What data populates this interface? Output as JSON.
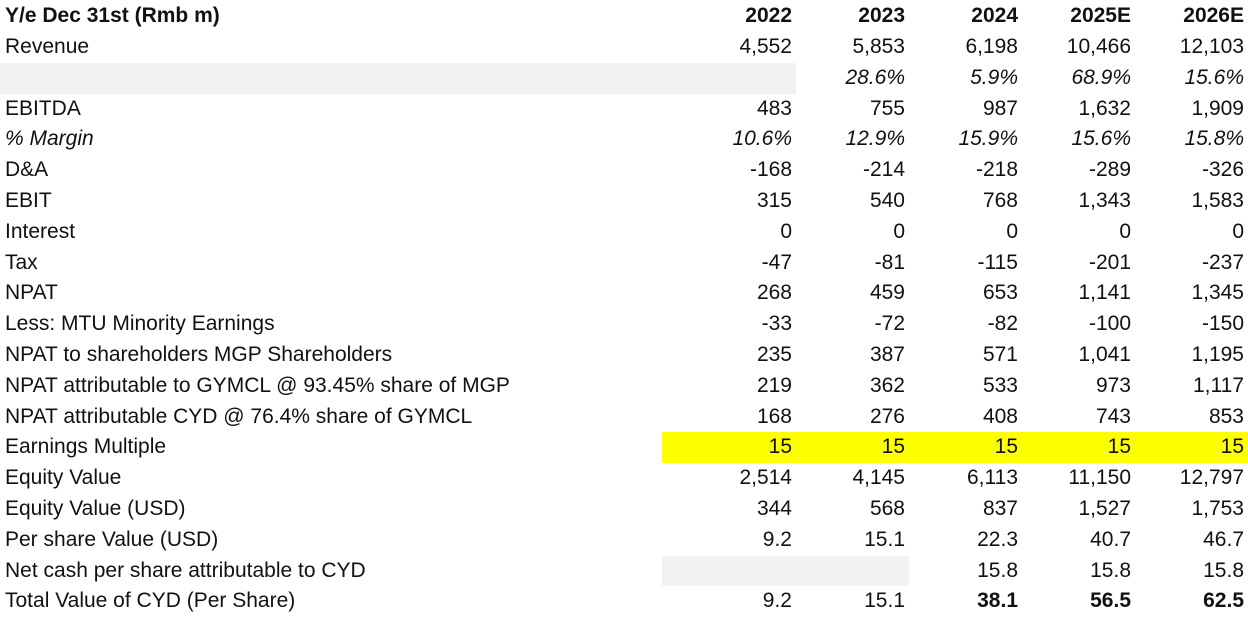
{
  "header": {
    "label": "Y/e Dec 31st (Rmb m)",
    "years": [
      "2022",
      "2023",
      "2024",
      "2025E",
      "2026E"
    ]
  },
  "rows": {
    "revenue": {
      "label": "Revenue",
      "v": [
        "4,552",
        "5,853",
        "6,198",
        "10,466",
        "12,103"
      ]
    },
    "revenue_growth": {
      "label": "",
      "v": [
        "",
        "28.6%",
        "5.9%",
        "68.9%",
        "15.6%"
      ]
    },
    "ebitda": {
      "label": "EBITDA",
      "v": [
        "483",
        "755",
        "987",
        "1,632",
        "1,909"
      ]
    },
    "margin": {
      "label": "% Margin",
      "v": [
        "10.6%",
        "12.9%",
        "15.9%",
        "15.6%",
        "15.8%"
      ]
    },
    "da": {
      "label": "D&A",
      "v": [
        "-168",
        "-214",
        "-218",
        "-289",
        "-326"
      ]
    },
    "ebit": {
      "label": "EBIT",
      "v": [
        "315",
        "540",
        "768",
        "1,343",
        "1,583"
      ]
    },
    "interest": {
      "label": "Interest",
      "v": [
        "0",
        "0",
        "0",
        "0",
        "0"
      ]
    },
    "tax": {
      "label": "Tax",
      "v": [
        "-47",
        "-81",
        "-115",
        "-201",
        "-237"
      ]
    },
    "npat": {
      "label": "NPAT",
      "v": [
        "268",
        "459",
        "653",
        "1,141",
        "1,345"
      ]
    },
    "minority": {
      "label": "Less: MTU Minority Earnings",
      "v": [
        "-33",
        "-72",
        "-82",
        "-100",
        "-150"
      ]
    },
    "npat_mgp": {
      "label": "NPAT to shareholders MGP Shareholders",
      "v": [
        "235",
        "387",
        "571",
        "1,041",
        "1,195"
      ]
    },
    "npat_gymcl": {
      "label": "NPAT attributable to GYMCL @ 93.45% share of MGP",
      "v": [
        "219",
        "362",
        "533",
        "973",
        "1,117"
      ]
    },
    "npat_cyd": {
      "label": "NPAT attributable CYD @ 76.4% share of GYMCL",
      "v": [
        "168",
        "276",
        "408",
        "743",
        "853"
      ]
    },
    "multiple": {
      "label": "Earnings Multiple",
      "v": [
        "15",
        "15",
        "15",
        "15",
        "15"
      ]
    },
    "equity": {
      "label": "Equity Value",
      "v": [
        "2,514",
        "4,145",
        "6,113",
        "11,150",
        "12,797"
      ]
    },
    "equity_usd": {
      "label": "Equity Value (USD)",
      "v": [
        "344",
        "568",
        "837",
        "1,527",
        "1,753"
      ]
    },
    "per_share": {
      "label": "Per share Value (USD)",
      "v": [
        "9.2",
        "15.1",
        "22.3",
        "40.7",
        "46.7"
      ]
    },
    "net_cash": {
      "label": "Net cash per share attributable to CYD",
      "v": [
        "",
        "",
        "15.8",
        "15.8",
        "15.8"
      ]
    },
    "total": {
      "label": "Total Value of CYD (Per Share)",
      "v": [
        "9.2",
        "15.1",
        "38.1",
        "56.5",
        "62.5"
      ]
    }
  },
  "colors": {
    "highlight": "#ffff00",
    "shade": "#f2f2f2"
  }
}
